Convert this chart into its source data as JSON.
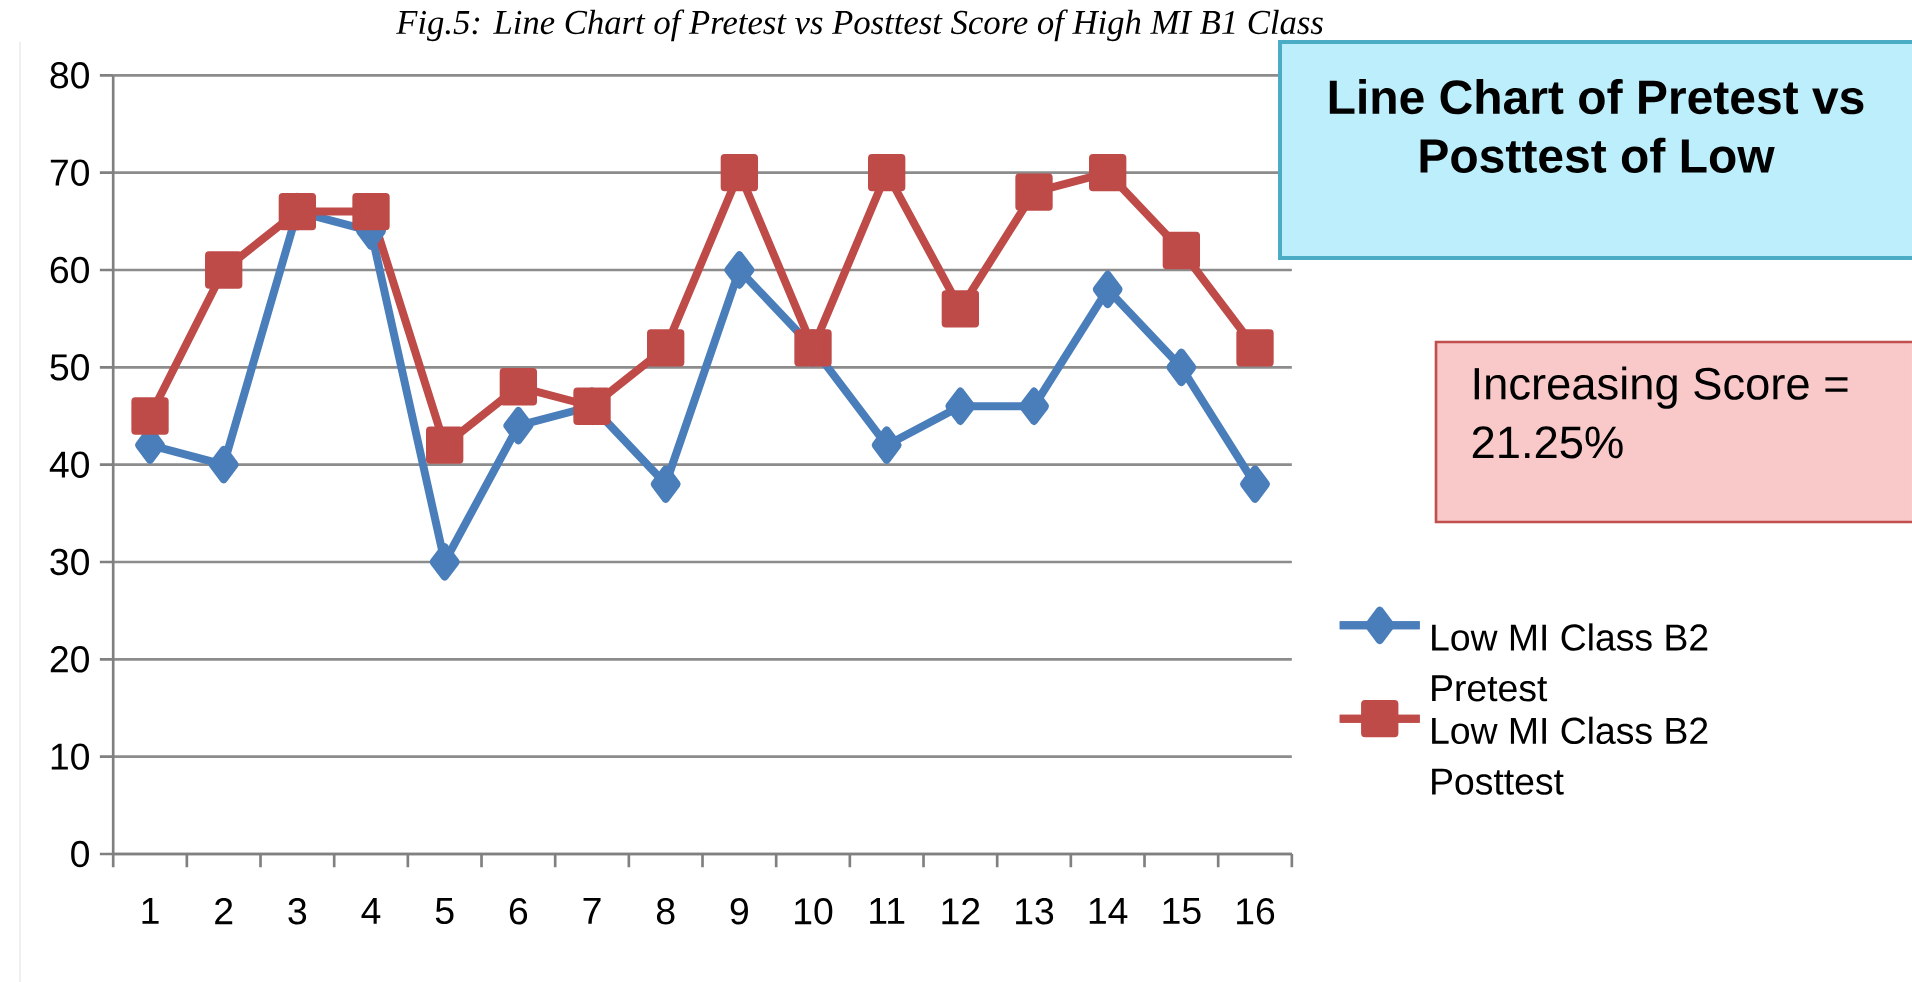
{
  "chart_data": {
    "type": "line",
    "title": "Line Chart of Pretest vs Posttest  of Low",
    "subtitle": "Fig.5: Line Chart of Pretest vs Posttest Score of High MI B1 Class",
    "annotations": [
      "Increasing Score = 21.25%"
    ],
    "categories": [
      "1",
      "2",
      "3",
      "4",
      "5",
      "6",
      "7",
      "8",
      "9",
      "10",
      "11",
      "12",
      "13",
      "14",
      "15",
      "16"
    ],
    "series": [
      {
        "name": "Low MI Class B2 Pretest",
        "color": "#4a7ebb",
        "marker": "diamond",
        "values": [
          42,
          40,
          66,
          64,
          30,
          44,
          46,
          38,
          60,
          52,
          42,
          46,
          46,
          58,
          50,
          38
        ]
      },
      {
        "name": "Low MI Class B2 Posttest",
        "color": "#be4b48",
        "marker": "square",
        "values": [
          45,
          60,
          66,
          66,
          42,
          48,
          46,
          52,
          70,
          52,
          70,
          56,
          68,
          70,
          62,
          52
        ]
      }
    ],
    "ylim": [
      0,
      80
    ],
    "yticks": [
      0,
      10,
      20,
      30,
      40,
      50,
      60,
      70,
      80
    ],
    "grid": "y",
    "legend": "right",
    "line_style": "solid"
  }
}
